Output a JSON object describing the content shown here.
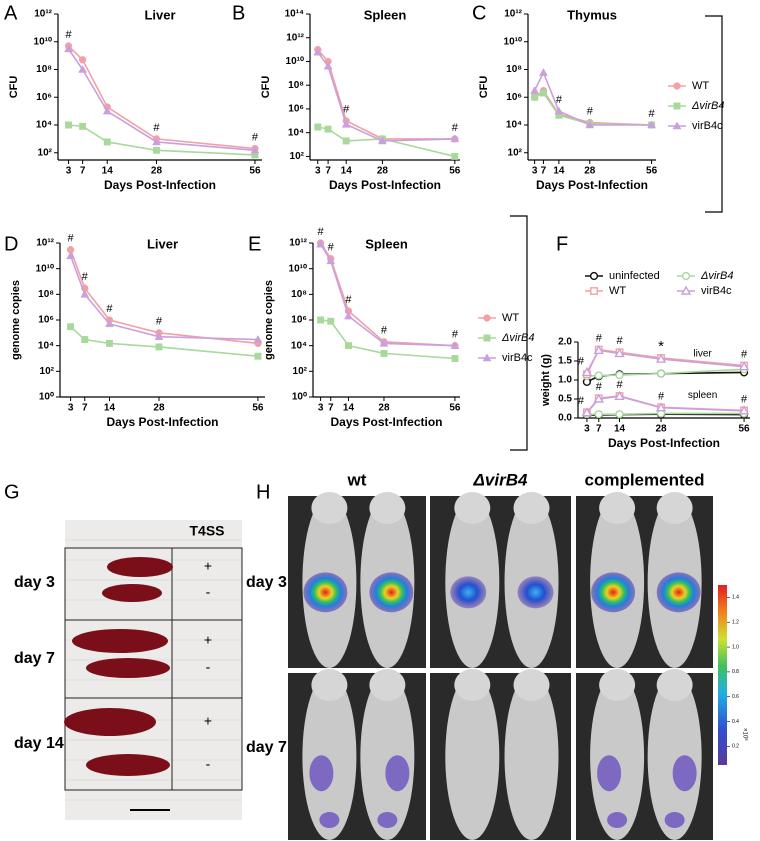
{
  "panel_labels": [
    "A",
    "B",
    "C",
    "D",
    "E",
    "F",
    "G",
    "H"
  ],
  "chart_data": [
    {
      "type": "line",
      "title": "Liver",
      "xlabel": "Days Post-Infection",
      "ylabel": "CFU",
      "log_y": true,
      "x": [
        3,
        7,
        14,
        28,
        56
      ],
      "xlim": [
        0,
        58
      ],
      "xticks": [
        3,
        7,
        14,
        28,
        56
      ],
      "ylim": [
        30,
        1000000000000.0
      ],
      "yticks": [
        {
          "value": 100,
          "label": "10²"
        },
        {
          "value": 10000,
          "label": "10⁴"
        },
        {
          "value": 1000000,
          "label": "10⁶"
        },
        {
          "value": 100000000,
          "label": "10⁸"
        },
        {
          "value": 10000000000,
          "label": "10¹⁰"
        },
        {
          "value": 1000000000000,
          "label": "10¹²"
        }
      ],
      "series": [
        {
          "color": "#f2a0a6",
          "marker": "circle",
          "values": [
            5000000000.0,
            500000000.0,
            200000.0,
            1000,
            200
          ]
        },
        {
          "color": "#a8d89b",
          "marker": "square",
          "values": [
            10000,
            8000,
            600,
            150,
            70
          ]
        },
        {
          "color": "#c9a0dc",
          "marker": "triangle",
          "values": [
            3000000000.0,
            100000000.0,
            100000.0,
            600,
            150
          ]
        }
      ],
      "annotations": [
        {
          "x": 3,
          "text": "#"
        },
        {
          "x": 28,
          "text": "#"
        },
        {
          "x": 56,
          "text": "#"
        }
      ]
    },
    {
      "type": "line",
      "title": "Spleen",
      "xlabel": "Days Post-Infection",
      "ylabel": "CFU",
      "log_y": true,
      "x": [
        3,
        7,
        14,
        28,
        56
      ],
      "xlim": [
        0,
        58
      ],
      "xticks": [
        3,
        7,
        14,
        28,
        56
      ],
      "ylim": [
        50,
        100000000000000.0
      ],
      "yticks": [
        {
          "value": 100,
          "label": "10²"
        },
        {
          "value": 10000,
          "label": "10⁴"
        },
        {
          "value": 1000000,
          "label": "10⁶"
        },
        {
          "value": 100000000,
          "label": "10⁸"
        },
        {
          "value": 10000000000,
          "label": "10¹⁰"
        },
        {
          "value": 1000000000000,
          "label": "10¹²"
        },
        {
          "value": 100000000000000,
          "label": "10¹⁴"
        }
      ],
      "series": [
        {
          "color": "#f2a0a6",
          "marker": "circle",
          "values": [
            100000000000.0,
            10000000000.0,
            100000,
            3000,
            3000
          ]
        },
        {
          "color": "#a8d89b",
          "marker": "square",
          "values": [
            30000,
            20000,
            2000,
            3000,
            100
          ]
        },
        {
          "color": "#c9a0dc",
          "marker": "triangle",
          "values": [
            60000000000.0,
            4000000000.0,
            50000,
            2000,
            3000
          ]
        }
      ],
      "annotations": [
        {
          "x": 14,
          "text": "#"
        },
        {
          "x": 56,
          "text": "#"
        }
      ]
    },
    {
      "type": "line",
      "title": "Thymus",
      "xlabel": "Days Post-Infection",
      "ylabel": "CFU",
      "log_y": true,
      "x": [
        3,
        7,
        14,
        28,
        56
      ],
      "xlim": [
        0,
        58
      ],
      "xticks": [
        3,
        7,
        14,
        28,
        56
      ],
      "ylim": [
        30,
        1000000000000.0
      ],
      "yticks": [
        {
          "value": 100,
          "label": "10²"
        },
        {
          "value": 10000,
          "label": "10⁴"
        },
        {
          "value": 1000000,
          "label": "10⁶"
        },
        {
          "value": 100000000,
          "label": "10⁸"
        },
        {
          "value": 10000000000,
          "label": "10¹⁰"
        },
        {
          "value": 1000000000000,
          "label": "10¹²"
        }
      ],
      "legend": "right",
      "series": [
        {
          "name": "WT",
          "color": "#f2a0a6",
          "marker": "circle",
          "values": [
            1000000,
            3000000,
            60000,
            15000,
            10000
          ]
        },
        {
          "name": "ΔvirB4",
          "italic": true,
          "color": "#a8d89b",
          "marker": "square",
          "values": [
            1000000,
            2000000,
            50000,
            12000,
            10000
          ]
        },
        {
          "name": "virB4c",
          "color": "#c9a0dc",
          "marker": "triangle",
          "values": [
            3000000,
            60000000,
            100000,
            10000,
            10000
          ]
        }
      ],
      "annotations": [
        {
          "x": 14,
          "text": "#"
        },
        {
          "x": 28,
          "text": "#"
        },
        {
          "x": 56,
          "text": "#"
        }
      ]
    },
    {
      "type": "line",
      "title": "Liver",
      "xlabel": "Days Post-Infection",
      "ylabel": "genome copies",
      "log_y": true,
      "x": [
        3,
        7,
        14,
        28,
        56
      ],
      "xlim": [
        0,
        58
      ],
      "xticks": [
        3,
        7,
        14,
        28,
        56
      ],
      "ylim": [
        1,
        1000000000000.0
      ],
      "yticks": [
        {
          "value": 1,
          "label": "10⁰"
        },
        {
          "value": 100,
          "label": "10²"
        },
        {
          "value": 10000,
          "label": "10⁴"
        },
        {
          "value": 1000000,
          "label": "10⁶"
        },
        {
          "value": 100000000,
          "label": "10⁸"
        },
        {
          "value": 10000000000,
          "label": "10¹⁰"
        },
        {
          "value": 1000000000000,
          "label": "10¹²"
        }
      ],
      "series": [
        {
          "color": "#f2a0a6",
          "marker": "circle",
          "values": [
            300000000000.0,
            300000000.0,
            1000000,
            100000,
            15000
          ]
        },
        {
          "color": "#a8d89b",
          "marker": "square",
          "values": [
            300000,
            30000,
            15000,
            8000,
            1500
          ]
        },
        {
          "color": "#c9a0dc",
          "marker": "triangle",
          "values": [
            100000000000.0,
            100000000.0,
            500000,
            50000,
            30000
          ]
        }
      ],
      "annotations": [
        {
          "x": 3,
          "text": "#"
        },
        {
          "x": 7,
          "text": "#"
        },
        {
          "x": 14,
          "text": "#"
        },
        {
          "x": 28,
          "text": "#"
        }
      ]
    },
    {
      "type": "line",
      "title": "Spleen",
      "xlabel": "Days Post-Infection",
      "ylabel": "genome copies",
      "log_y": true,
      "x": [
        3,
        7,
        14,
        28,
        56
      ],
      "xlim": [
        0,
        58
      ],
      "xticks": [
        3,
        7,
        14,
        28,
        56
      ],
      "ylim": [
        1,
        1000000000000.0
      ],
      "yticks": [
        {
          "value": 1,
          "label": "10⁰"
        },
        {
          "value": 100,
          "label": "10²"
        },
        {
          "value": 10000,
          "label": "10⁴"
        },
        {
          "value": 1000000,
          "label": "10⁶"
        },
        {
          "value": 100000000,
          "label": "10⁸"
        },
        {
          "value": 10000000000,
          "label": "10¹⁰"
        },
        {
          "value": 1000000000000,
          "label": "10¹²"
        }
      ],
      "legend": "right",
      "series": [
        {
          "name": "WT",
          "color": "#f2a0a6",
          "marker": "circle",
          "values": [
            1000000000000.0,
            60000000000.0,
            5000000,
            20000,
            10000
          ]
        },
        {
          "name": "ΔvirB4",
          "italic": true,
          "color": "#a8d89b",
          "marker": "square",
          "values": [
            1000000,
            800000,
            10000,
            2500,
            1000
          ]
        },
        {
          "name": "virB4c",
          "color": "#c9a0dc",
          "marker": "triangle",
          "values": [
            800000000000.0,
            40000000000.0,
            2000000,
            15000,
            10000
          ]
        }
      ],
      "annotations": [
        {
          "x": 3,
          "text": "#"
        },
        {
          "x": 7,
          "text": "#"
        },
        {
          "x": 14,
          "text": "#"
        },
        {
          "x": 28,
          "text": "#"
        },
        {
          "x": 56,
          "text": "#"
        }
      ]
    },
    {
      "type": "grouped_line",
      "xlabel": "Days Post-Infection",
      "ylabel": "weight (g)",
      "x": [
        3,
        7,
        14,
        28,
        56
      ],
      "xlim": [
        0,
        58
      ],
      "xticks": [
        3,
        7,
        14,
        28,
        56
      ],
      "ylim": [
        0,
        2
      ],
      "yticks": [
        {
          "value": 0,
          "label": "0.0"
        },
        0.5,
        {
          "value": 1,
          "label": "1.0"
        },
        1.5,
        {
          "value": 2,
          "label": "2.0"
        }
      ],
      "legend": "top",
      "groups": [
        "liver",
        "spleen"
      ],
      "series": [
        {
          "name": "uninfected",
          "color": "#111111",
          "marker": "circle",
          "open": true,
          "liver": [
            0.95,
            1.1,
            1.15,
            1.17,
            1.2
          ],
          "spleen": [
            0.08,
            0.08,
            0.09,
            0.1,
            0.09
          ]
        },
        {
          "name": "ΔvirB4",
          "italic": true,
          "color": "#a8d89b",
          "marker": "circle",
          "open": true,
          "liver": [
            1.1,
            1.12,
            1.13,
            1.17,
            1.28
          ],
          "spleen": [
            0.1,
            0.1,
            0.1,
            0.12,
            0.12
          ]
        },
        {
          "name": "WT",
          "color": "#f2a0a6",
          "marker": "square",
          "open": true,
          "liver": [
            1.15,
            1.8,
            1.73,
            1.58,
            1.38
          ],
          "spleen": [
            0.15,
            0.52,
            0.58,
            0.28,
            0.2
          ]
        },
        {
          "name": "virB4c",
          "color": "#c9a0dc",
          "marker": "triangle",
          "open": true,
          "liver": [
            1.2,
            1.78,
            1.7,
            1.55,
            1.35
          ],
          "spleen": [
            0.14,
            0.5,
            0.57,
            0.27,
            0.19
          ]
        }
      ],
      "annotations": [
        {
          "group": "liver",
          "x": 3,
          "text": "#"
        },
        {
          "group": "liver",
          "x": 7,
          "text": "#"
        },
        {
          "group": "liver",
          "x": 14,
          "text": "#"
        },
        {
          "group": "liver",
          "x": 28,
          "text": "*"
        },
        {
          "group": "liver",
          "x": 56,
          "text": "#"
        },
        {
          "group": "spleen",
          "x": 3,
          "text": "#"
        },
        {
          "group": "spleen",
          "x": 7,
          "text": "#"
        },
        {
          "group": "spleen",
          "x": 14,
          "text": "#"
        },
        {
          "group": "spleen",
          "x": 28,
          "text": "#"
        },
        {
          "group": "spleen",
          "x": 56,
          "text": "#"
        }
      ]
    }
  ],
  "gel": {
    "title": "T4SS",
    "rows": [
      {
        "label": "day 3",
        "signs": [
          "+",
          "-"
        ]
      },
      {
        "label": "day 7",
        "signs": [
          "+",
          "-"
        ]
      },
      {
        "label": "day 14",
        "signs": [
          "+",
          "-"
        ]
      }
    ]
  },
  "imaging": {
    "columns": [
      "wt",
      "ΔvirB4",
      "complemented"
    ],
    "rows": [
      "day 3",
      "day 7"
    ],
    "colorbar": {
      "label": "×10⁸",
      "ticks": [
        0.2,
        0.4,
        0.6,
        0.8,
        {
          "value": 1,
          "label": "1.0"
        },
        1.2,
        1.4
      ],
      "lim": [
        0.05,
        1.5
      ]
    }
  }
}
